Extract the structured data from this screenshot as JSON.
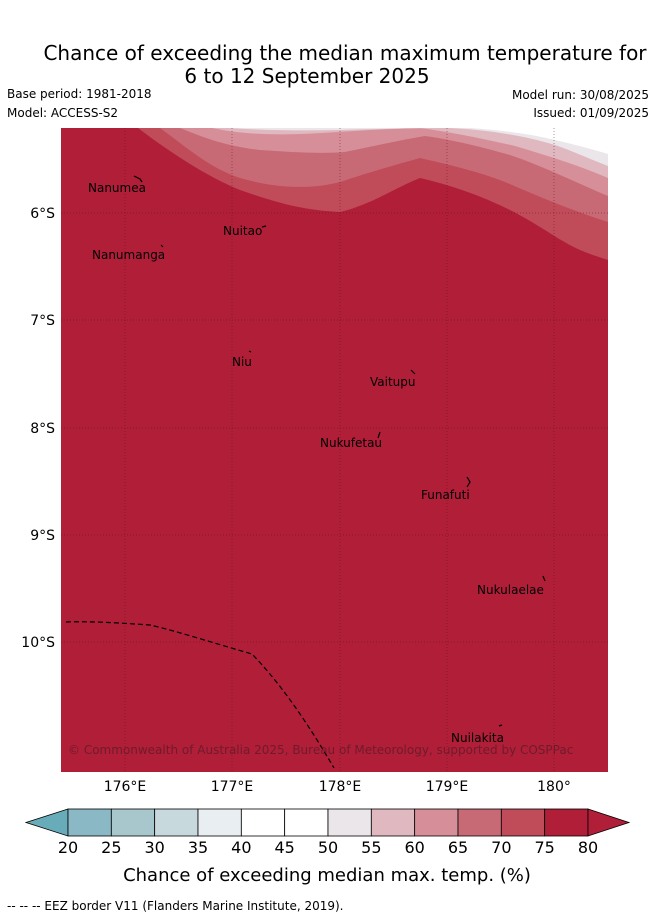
{
  "title_line1": "Chance of exceeding the median maximum temperature for",
  "title_line2": "6 to 12 September 2025",
  "base_period": "Base period: 1981-2018",
  "model": "Model: ACCESS-S2",
  "model_run": "Model run: 30/08/2025",
  "issued": "Issued: 01/09/2025",
  "credit": "© Commonwealth of Australia 2025, Bureau of Meteorology, supported by COSPPac",
  "footer": "-- -- -- EEZ border V11 (Flanders Marine Institute, 2019).",
  "lat_labels": [
    "6°S",
    "7°S",
    "8°S",
    "9°S",
    "10°S"
  ],
  "lon_labels": [
    "176°E",
    "177°E",
    "178°E",
    "179°E",
    "180°"
  ],
  "places": [
    {
      "name": "Nanumea"
    },
    {
      "name": "Nuitao"
    },
    {
      "name": "Nanumanga"
    },
    {
      "name": "Niu"
    },
    {
      "name": "Vaitupu"
    },
    {
      "name": "Nukufetau"
    },
    {
      "name": "Funafuti"
    },
    {
      "name": "Nukulaelae"
    },
    {
      "name": "Nuilakita"
    }
  ],
  "colorbar": {
    "title": "Chance of exceeding median max. temp. (%)",
    "ticks": [
      "20",
      "25",
      "30",
      "35",
      "40",
      "45",
      "50",
      "55",
      "60",
      "65",
      "70",
      "75",
      "80"
    ],
    "colors": [
      "#69acb9",
      "#8ab8c4",
      "#a8c7cc",
      "#c8d9de",
      "#e8eef1",
      "#ffffff",
      "#ffffff",
      "#eae6e9",
      "#e0b8bf",
      "#d68f98",
      "#c86a75",
      "#c04b59",
      "#b01e38"
    ]
  },
  "palette": {
    "p80": "#b01e38",
    "p75": "#c04b59",
    "p70": "#c86a75",
    "p65": "#d68f98",
    "p60": "#e0b8bf",
    "p55": "#eae6e9"
  }
}
